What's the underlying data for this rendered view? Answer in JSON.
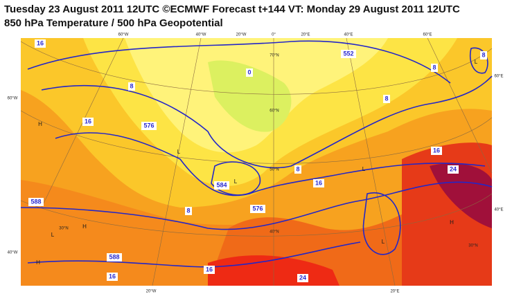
{
  "header": {
    "title_line1": "Tuesday 23 August 2011 12UTC ©ECMWF Forecast t+144 VT: Monday 29 August 2011 12UTC",
    "title_line2": "850 hPa Temperature / 500 hPa Geopotential"
  },
  "graticule_labels": [
    "60°W",
    "40°W",
    "20°W",
    "0°",
    "20°E",
    "40°E",
    "60°E",
    "60°W",
    "40°W",
    "60°E",
    "40°E",
    "20°W",
    "20°E",
    "70°N",
    "60°N",
    "50°N",
    "40°N",
    "30°N",
    "30°N"
  ],
  "contour_labels": [
    "16",
    "16",
    "0",
    "8",
    "8",
    "8",
    "8",
    "8",
    "16",
    "16",
    "24",
    "24",
    "16",
    "16",
    "8",
    "576",
    "584",
    "588",
    "552",
    "588",
    "576"
  ],
  "pressure_centers": [
    "H",
    "H",
    "H",
    "L",
    "L",
    "L",
    "L",
    "L",
    "L",
    "H"
  ]
}
